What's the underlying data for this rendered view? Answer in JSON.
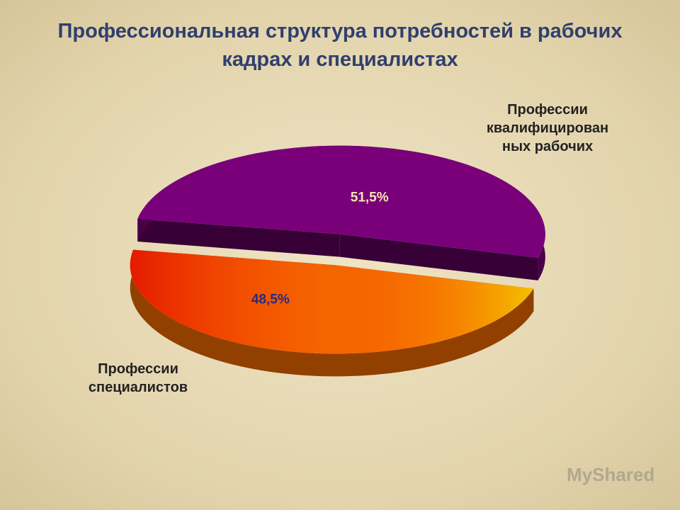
{
  "chart_data": {
    "type": "pie3d",
    "title": "Профессиональная структура потребностей в рабочих кадрах и специалистах",
    "categories": [
      "Профессии квалифицированных рабочих",
      "Профессии специалистов"
    ],
    "values": [
      51.5,
      48.5
    ],
    "value_labels": [
      "51,5%",
      "48,5%"
    ],
    "colors": [
      "#7a007a",
      "#f26a00"
    ]
  },
  "watermark": "MyShared"
}
